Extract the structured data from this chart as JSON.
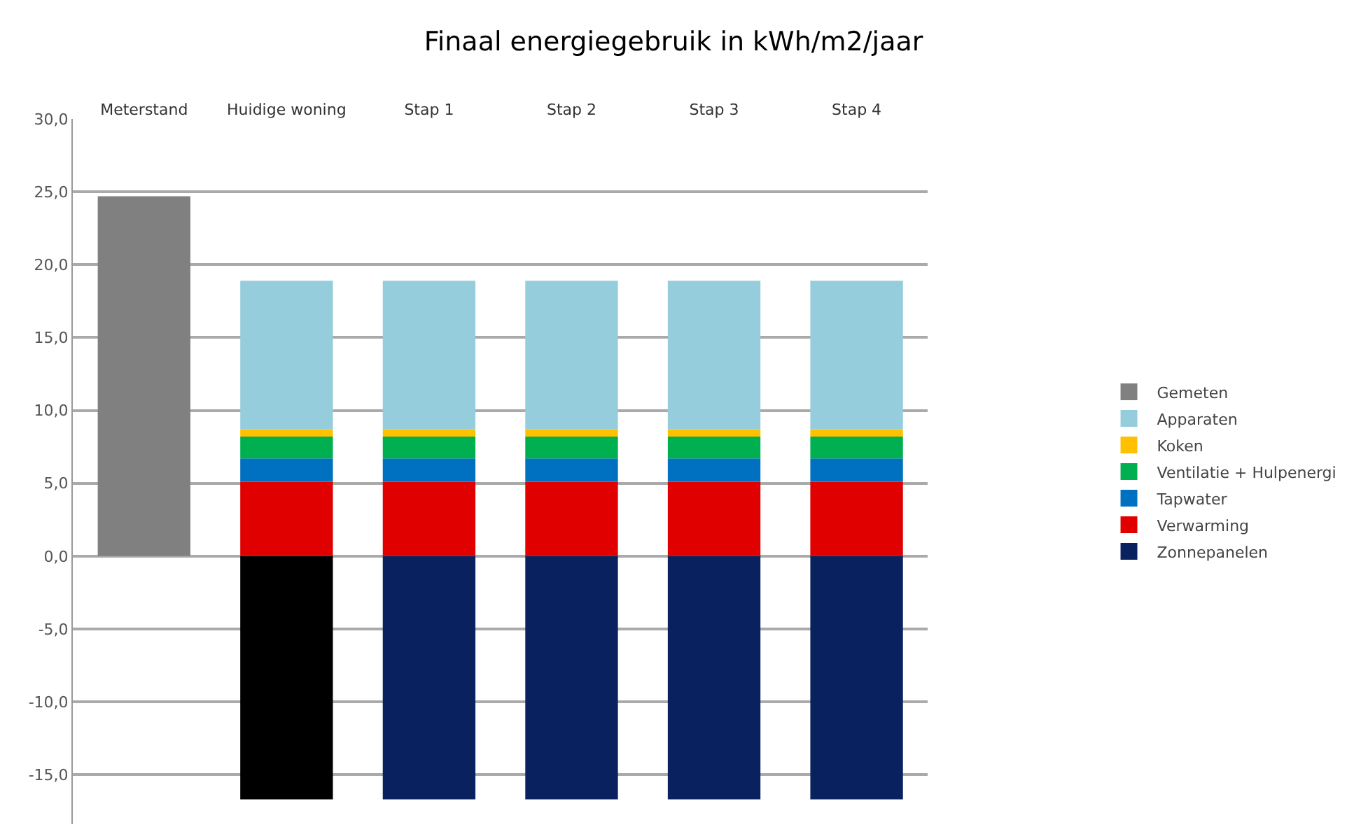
{
  "chart_data": {
    "type": "bar",
    "title": "Finaal energiegebruik in kWh/m2/jaar",
    "stacked": true,
    "categories": [
      "Meterstand",
      "Huidige woning",
      "Stap 1",
      "Stap 2",
      "Stap 3",
      "Stap 4"
    ],
    "series": [
      {
        "name": "Zonnepanelen",
        "color": "#0a2160",
        "colors": [
          null,
          "#000000",
          "#0a2160",
          "#0a2160",
          "#0a2160",
          "#0a2160"
        ],
        "values": [
          null,
          -16.7,
          -16.7,
          -16.7,
          -16.7,
          -16.7
        ]
      },
      {
        "name": "Verwarming",
        "color": "#e00000",
        "values": [
          null,
          5.1,
          5.1,
          5.1,
          5.1,
          5.1
        ]
      },
      {
        "name": "Tapwater",
        "color": "#0070c0",
        "values": [
          null,
          1.6,
          1.6,
          1.6,
          1.6,
          1.6
        ]
      },
      {
        "name": "Ventilatie + Hulpenergi",
        "color": "#00b050",
        "values": [
          null,
          1.5,
          1.5,
          1.5,
          1.5,
          1.5
        ]
      },
      {
        "name": "Koken",
        "color": "#ffc000",
        "values": [
          null,
          0.5,
          0.5,
          0.5,
          0.5,
          0.5
        ]
      },
      {
        "name": "Apparaten",
        "color": "#96cddc",
        "values": [
          null,
          10.2,
          10.2,
          10.2,
          10.2,
          10.2
        ]
      },
      {
        "name": "Gemeten",
        "color": "#808080",
        "values": [
          24.7,
          null,
          null,
          null,
          null,
          null
        ]
      }
    ],
    "ylim": [
      -18.4,
      30
    ],
    "yticks": [
      {
        "value": -15,
        "label": "-15,0"
      },
      {
        "value": -10,
        "label": "-10,0"
      },
      {
        "value": -5,
        "label": "-5,0"
      },
      {
        "value": 0,
        "label": "0,0"
      },
      {
        "value": 5,
        "label": "5,0"
      },
      {
        "value": 10,
        "label": "10,0"
      },
      {
        "value": 15,
        "label": "15,0"
      },
      {
        "value": 20,
        "label": "20,0"
      },
      {
        "value": 25,
        "label": "25,0"
      },
      {
        "value": 30,
        "label": "30,0"
      }
    ],
    "grid": "y",
    "legend": "right"
  }
}
